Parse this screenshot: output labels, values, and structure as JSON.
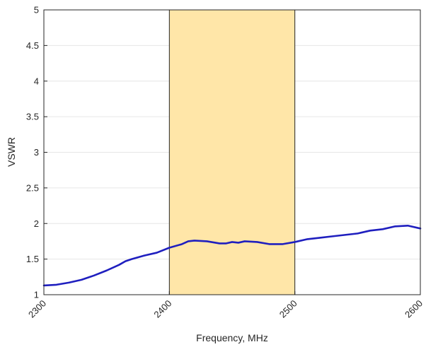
{
  "chart_data": {
    "type": "line",
    "title": "",
    "xlabel": "Frequency, MHz",
    "ylabel": "VSWR",
    "xlim": [
      2300,
      2600
    ],
    "ylim": [
      1,
      5
    ],
    "xticks": [
      "2300",
      "2400",
      "2500",
      "2600"
    ],
    "yticks": [
      "1",
      "1.5",
      "2",
      "2.5",
      "3",
      "3.5",
      "4",
      "4.5",
      "5"
    ],
    "grid": true,
    "legend": "none",
    "highlight_band": {
      "x_range": [
        2400,
        2500
      ],
      "color": "#ffe6a8"
    },
    "series": [
      {
        "color": "#1f1fbf",
        "x": [
          2300,
          2310,
          2320,
          2330,
          2340,
          2350,
          2360,
          2365,
          2370,
          2380,
          2390,
          2400,
          2410,
          2415,
          2420,
          2430,
          2440,
          2445,
          2450,
          2455,
          2460,
          2470,
          2480,
          2490,
          2500,
          2510,
          2520,
          2530,
          2540,
          2550,
          2560,
          2570,
          2580,
          2590,
          2600
        ],
        "y": [
          1.13,
          1.14,
          1.17,
          1.21,
          1.27,
          1.34,
          1.42,
          1.47,
          1.5,
          1.55,
          1.59,
          1.66,
          1.71,
          1.75,
          1.76,
          1.75,
          1.72,
          1.72,
          1.74,
          1.73,
          1.75,
          1.74,
          1.71,
          1.71,
          1.74,
          1.78,
          1.8,
          1.82,
          1.84,
          1.86,
          1.9,
          1.92,
          1.96,
          1.97,
          1.93
        ]
      }
    ]
  }
}
